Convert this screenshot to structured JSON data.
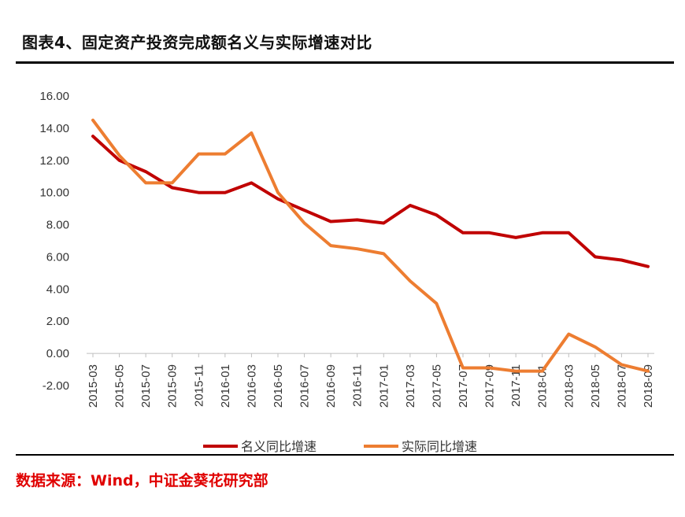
{
  "header": {
    "title": "图表4、固定资产投资完成额名义与实际增速对比"
  },
  "footer": {
    "source": "数据来源：Wind，中证金葵花研究部"
  },
  "colors": {
    "nominal": "#c00000",
    "real": "#ed7d31"
  },
  "chart_data": {
    "type": "line",
    "title": "",
    "xlabel": "",
    "ylabel": "",
    "ylim": [
      -2,
      16
    ],
    "yticks": [
      "16.00",
      "14.00",
      "12.00",
      "10.00",
      "8.00",
      "6.00",
      "4.00",
      "2.00",
      "0.00",
      "-2.00"
    ],
    "ytick_values": [
      16,
      14,
      12,
      10,
      8,
      6,
      4,
      2,
      0,
      -2
    ],
    "categories": [
      "2015-03",
      "2015-05",
      "2015-07",
      "2015-09",
      "2015-11",
      "2016-01",
      "2016-03",
      "2016-05",
      "2016-07",
      "2016-09",
      "2016-11",
      "2017-01",
      "2017-03",
      "2017-05",
      "2017-07",
      "2017-09",
      "2017-11",
      "2018-01",
      "2018-03",
      "2018-05",
      "2018-07",
      "2018-09"
    ],
    "legend_position": "bottom",
    "series": [
      {
        "name": "名义同比增速",
        "color": "#c00000",
        "values": [
          13.5,
          12.0,
          11.3,
          10.3,
          10.0,
          10.0,
          10.6,
          9.6,
          8.9,
          8.2,
          8.3,
          8.1,
          9.2,
          8.6,
          7.5,
          7.5,
          7.2,
          7.5,
          7.5,
          6.0,
          5.8,
          5.4
        ]
      },
      {
        "name": "实际同比增速",
        "color": "#ed7d31",
        "values": [
          14.5,
          12.3,
          10.6,
          10.6,
          12.4,
          12.4,
          13.7,
          10.0,
          8.1,
          6.7,
          6.5,
          6.2,
          4.5,
          3.1,
          -0.9,
          -0.9,
          -1.1,
          -1.1,
          1.2,
          0.4,
          -0.7,
          -1.1
        ]
      }
    ]
  }
}
